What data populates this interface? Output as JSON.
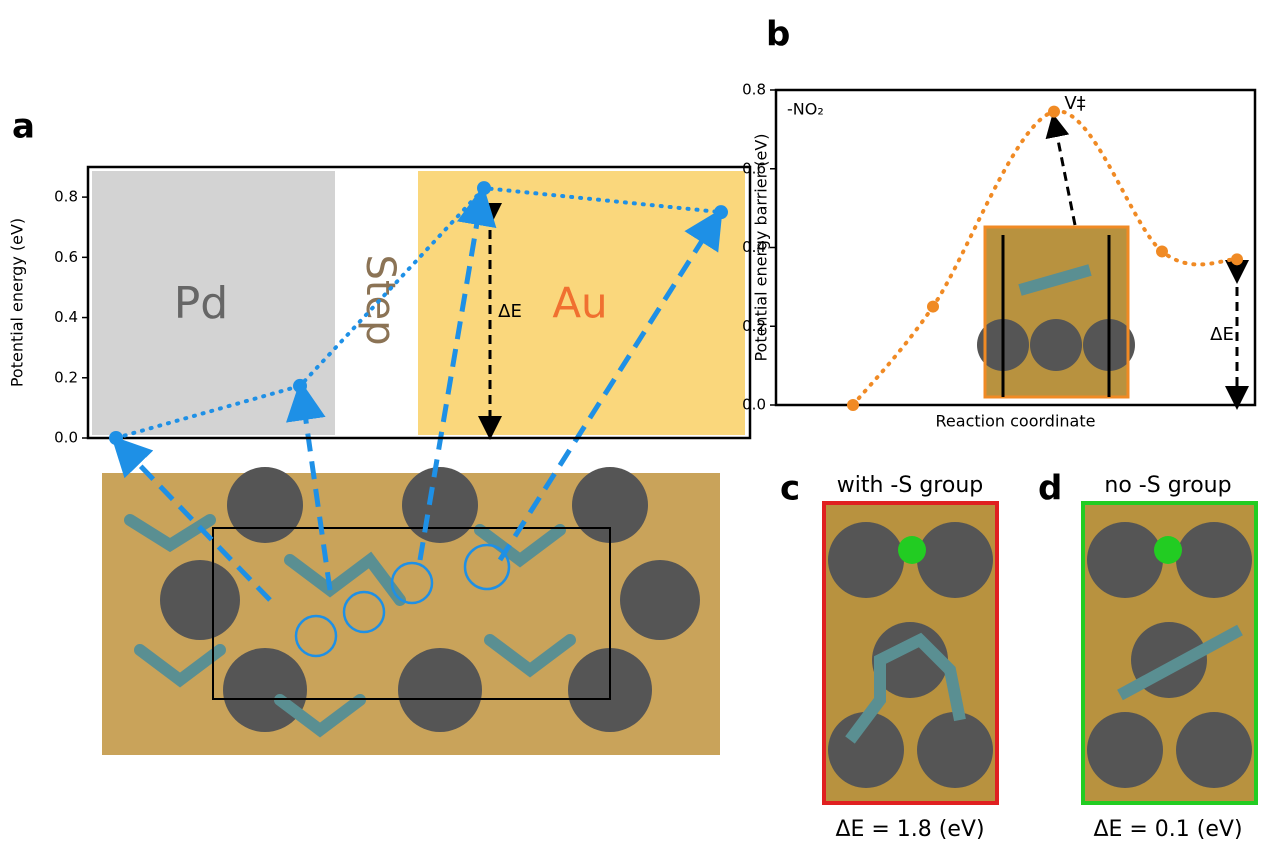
{
  "chart_data": [
    {
      "type": "line",
      "panel": "a",
      "ylabel": "Potential energy (eV)",
      "categories": [
        null,
        null,
        null,
        null
      ],
      "values": [
        0.0,
        0.173,
        0.83,
        0.75
      ],
      "color": "#1e90e6",
      "ylim": [
        0,
        0.9
      ],
      "yticks": [
        {
          "value": 0,
          "label": "0.0"
        },
        0.2,
        0.4,
        0.6,
        0.8
      ],
      "region_labels": [
        "Pd",
        "Step",
        "Au"
      ],
      "annotation": "ΔE"
    },
    {
      "type": "curve",
      "panel": "b",
      "ylabel": "Potential energy barrier (eV)",
      "xlabel": "Reaction coordinate",
      "categories": [
        null,
        null,
        null,
        null,
        null
      ],
      "values": [
        0.0,
        0.25,
        0.745,
        0.39,
        0.37
      ],
      "color": "#f08a24",
      "ylim": [
        0,
        0.8
      ],
      "yticks": [
        {
          "value": 0,
          "label": "0.0"
        },
        0.2,
        0.4,
        0.6,
        0.8
      ],
      "annotations": [
        "-NO₂",
        "V‡",
        "ΔE"
      ]
    }
  ],
  "images": [
    {
      "panel": "c",
      "title": "with -S group",
      "caption": "ΔE = 1.8 (eV)"
    },
    {
      "panel": "d",
      "title": "no -S group",
      "caption": "ΔE = 0.1 (eV)"
    }
  ]
}
